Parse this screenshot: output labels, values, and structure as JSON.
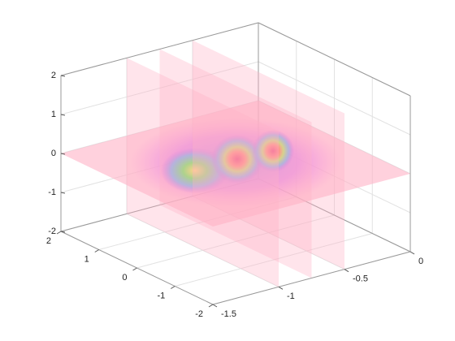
{
  "chart_data": {
    "type": "slice3d",
    "xlim": [
      -1.5,
      0
    ],
    "ylim": [
      -2,
      2
    ],
    "zlim": [
      -2,
      2
    ],
    "xticks": [
      -1.5,
      -1,
      -0.5,
      0
    ],
    "yticks": [
      -2,
      -1,
      0,
      1,
      2
    ],
    "zticks": [
      -2,
      -1,
      0,
      1,
      2
    ],
    "slices": {
      "x": [
        -1,
        -0.75,
        -0.5
      ],
      "z": [
        0
      ]
    },
    "slice_color": "#ffb3c6",
    "grid": true
  }
}
